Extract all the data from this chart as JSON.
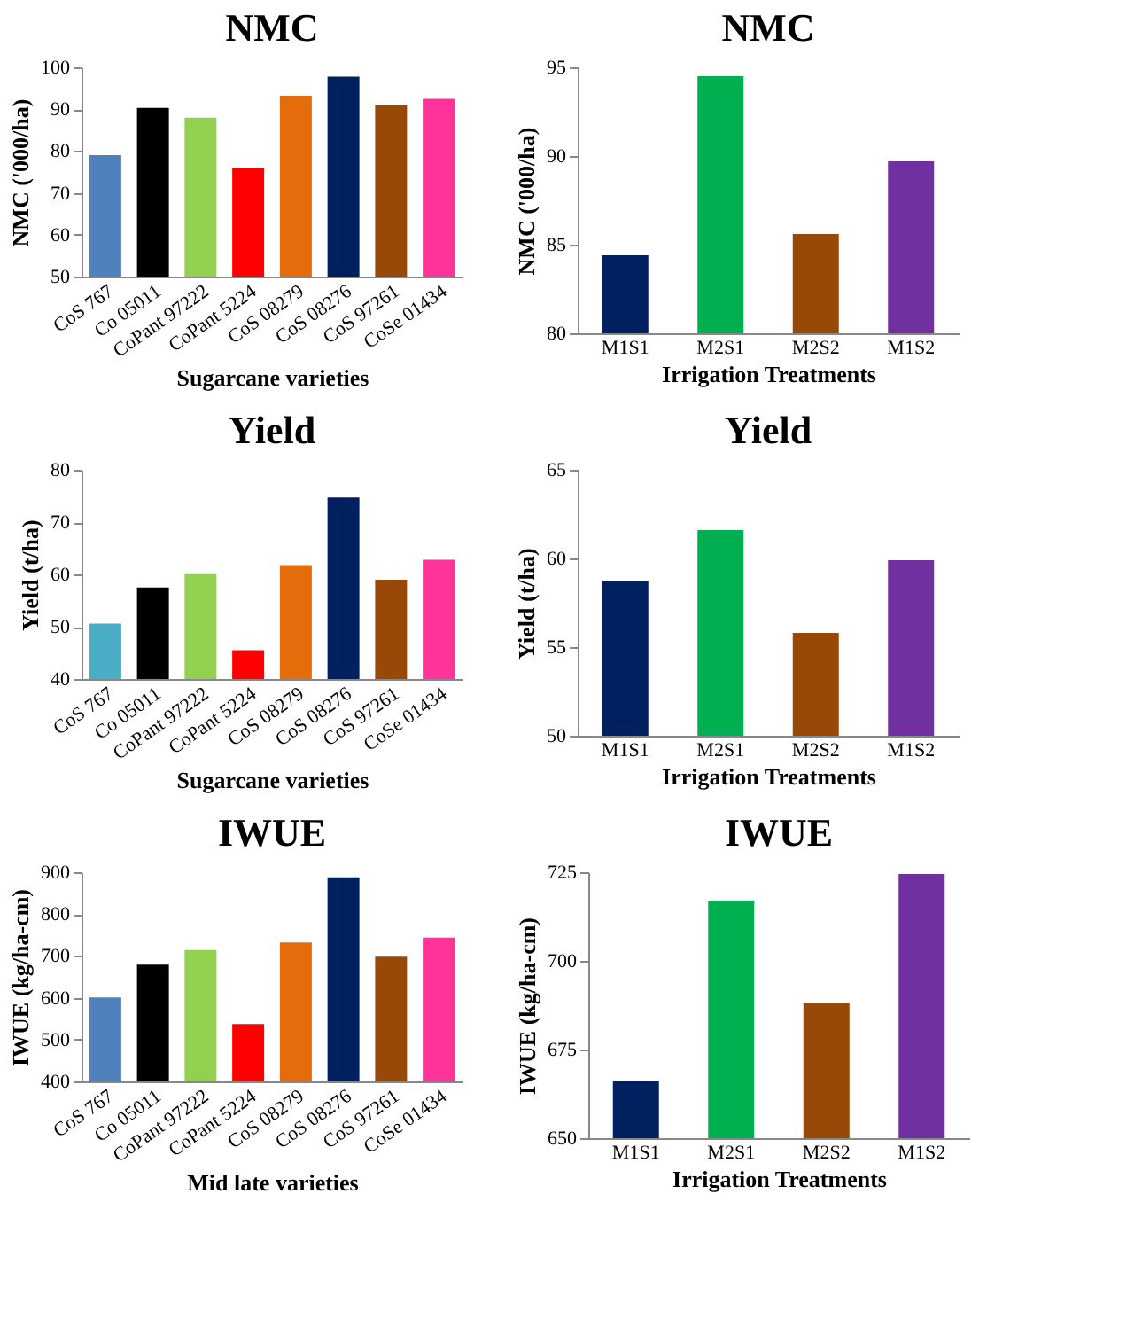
{
  "chart_data": [
    {
      "type": "bar",
      "title": "NMC",
      "xlabel": "Sugarcane varieties",
      "ylabel": "NMC ('000/ha)",
      "categories": [
        "CoS 767",
        "Co 05011",
        "CoPant 97222",
        "CoPant 5224",
        "CoS 08279",
        "CoS 08276",
        "CoS 97261",
        "CoSe 01434"
      ],
      "values": [
        79,
        90.3,
        88,
        76,
        93.2,
        97.8,
        91,
        92.5
      ],
      "colors": [
        "#4f81bd",
        "#000000",
        "#92d050",
        "#ff0000",
        "#e46c0a",
        "#002060",
        "#984807",
        "#ff3399"
      ],
      "ylim": [
        50,
        100
      ],
      "yticks": [
        50,
        60,
        70,
        80,
        90,
        100
      ],
      "grid": false
    },
    {
      "type": "bar",
      "title": "NMC",
      "xlabel": "Irrigation Treatments",
      "ylabel": "NMC ('000/ha)",
      "categories": [
        "M1S1",
        "M2S1",
        "M2S2",
        "M1S2"
      ],
      "values": [
        84.4,
        94.5,
        85.6,
        89.7
      ],
      "colors": [
        "#002060",
        "#00b050",
        "#984807",
        "#7030a0"
      ],
      "ylim": [
        80,
        95
      ],
      "yticks": [
        80,
        85,
        90,
        95
      ],
      "grid": false
    },
    {
      "type": "bar",
      "title": "Yield",
      "xlabel": "Sugarcane varieties",
      "ylabel": "Yield (t/ha)",
      "categories": [
        "CoS 767",
        "Co 05011",
        "CoPant 97222",
        "CoPant 5224",
        "CoS 08279",
        "CoS 08276",
        "CoS 97261",
        "CoSe 01434"
      ],
      "values": [
        50.6,
        57.5,
        60.2,
        45.5,
        61.8,
        74.7,
        59,
        62.8
      ],
      "colors": [
        "#4bacc6",
        "#000000",
        "#92d050",
        "#ff0000",
        "#e46c0a",
        "#002060",
        "#984807",
        "#ff3399"
      ],
      "ylim": [
        40,
        80
      ],
      "yticks": [
        40,
        50,
        60,
        70,
        80
      ],
      "grid": false
    },
    {
      "type": "bar",
      "title": "Yield",
      "xlabel": "Irrigation  Treatments",
      "ylabel": "Yield  (t/ha)",
      "categories": [
        "M1S1",
        "M2S1",
        "M2S2",
        "M1S2"
      ],
      "values": [
        58.7,
        61.6,
        55.8,
        59.9
      ],
      "colors": [
        "#002060",
        "#00b050",
        "#984807",
        "#7030a0"
      ],
      "ylim": [
        50,
        65
      ],
      "yticks": [
        50,
        55,
        60,
        65
      ],
      "grid": false
    },
    {
      "type": "bar",
      "title": "IWUE",
      "xlabel": "Mid late varieties",
      "ylabel": "IWUE (kg/ha-cm)",
      "categories": [
        "CoS 767",
        "Co 05011",
        "CoPant 97222",
        "CoPant 5224",
        "CoS 08279",
        "CoS 08276",
        "CoS 97261",
        "CoSe 01434"
      ],
      "values": [
        601,
        679,
        714,
        537,
        732,
        888,
        698,
        744
      ],
      "colors": [
        "#4f81bd",
        "#000000",
        "#92d050",
        "#ff0000",
        "#e46c0a",
        "#002060",
        "#984807",
        "#ff3399"
      ],
      "ylim": [
        400,
        900
      ],
      "yticks": [
        400,
        500,
        600,
        700,
        800,
        900
      ],
      "grid": false
    },
    {
      "type": "bar",
      "title": "IWUE",
      "xlabel": "Irrigation  Treatments",
      "ylabel": "IWUE  (kg/ha-cm)",
      "categories": [
        "M1S1",
        "M2S1",
        "M2S2",
        "M1S2"
      ],
      "values": [
        666,
        717,
        688,
        724.5
      ],
      "colors": [
        "#002060",
        "#00b050",
        "#984807",
        "#7030a0"
      ],
      "ylim": [
        650,
        725
      ],
      "yticks": [
        650,
        675,
        700,
        725
      ],
      "grid": false
    }
  ]
}
